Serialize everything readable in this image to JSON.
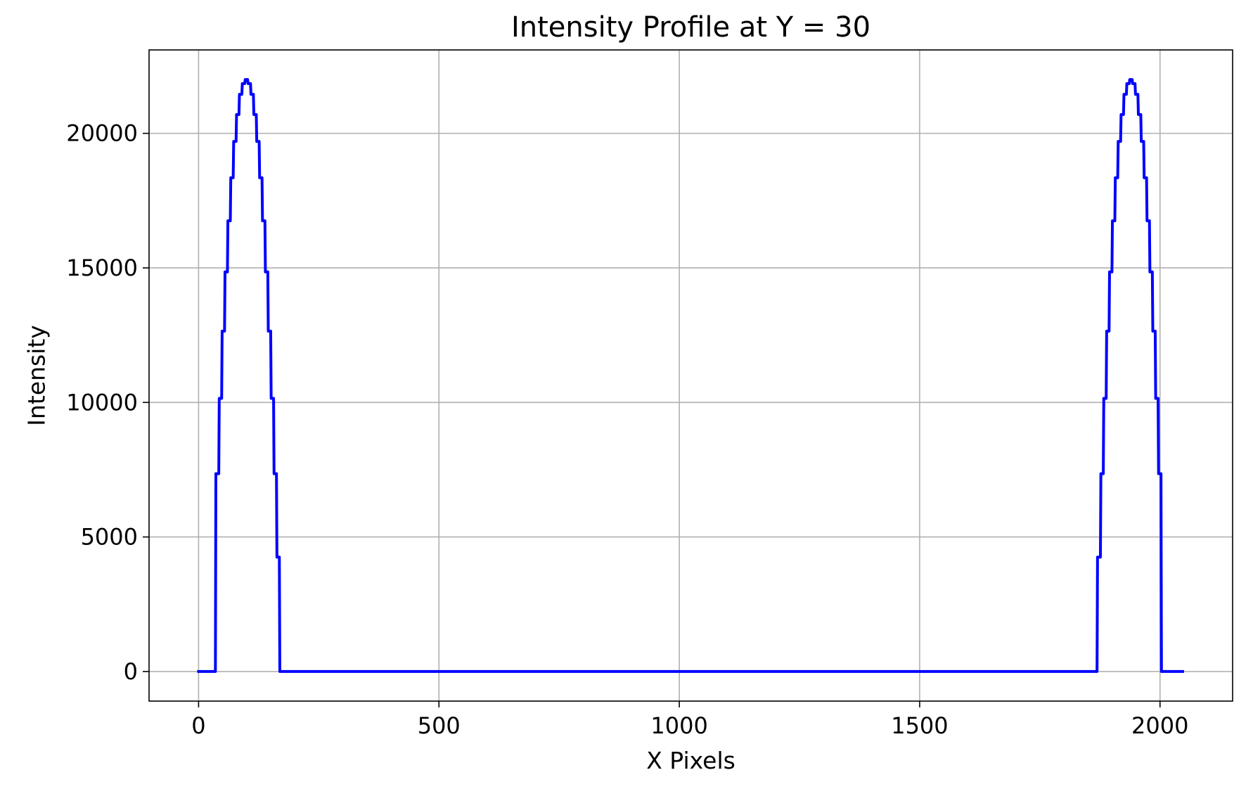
{
  "chart_data": {
    "type": "line",
    "title": "Intensity Profile at Y = 30",
    "xlabel": "X Pixels",
    "ylabel": "Intensity",
    "xlim": [
      -103,
      2151
    ],
    "ylim": [
      -1100,
      23100
    ],
    "xticks": [
      0,
      500,
      1000,
      1500,
      2000
    ],
    "yticks": [
      0,
      5000,
      10000,
      15000,
      20000
    ],
    "grid": true,
    "legend": "none",
    "series": [
      {
        "color": "#0000ff",
        "x": [
          0,
          35,
          36,
          42,
          43,
          48,
          49,
          54,
          55,
          60,
          61,
          66,
          67,
          72,
          73,
          78,
          79,
          84,
          85,
          90,
          91,
          96,
          97,
          102,
          103,
          108,
          109,
          114,
          115,
          120,
          121,
          126,
          127,
          132,
          133,
          138,
          139,
          144,
          145,
          150,
          151,
          156,
          157,
          162,
          163,
          168,
          169,
          1869,
          1870,
          1876,
          1877,
          1882,
          1883,
          1888,
          1889,
          1894,
          1895,
          1900,
          1901,
          1906,
          1907,
          1912,
          1913,
          1918,
          1919,
          1924,
          1925,
          1930,
          1931,
          1936,
          1937,
          1942,
          1943,
          1948,
          1949,
          1954,
          1955,
          1960,
          1961,
          1966,
          1967,
          1972,
          1973,
          1978,
          1979,
          1984,
          1985,
          1990,
          1991,
          1996,
          1997,
          2002,
          2003,
          2047
        ],
        "y": [
          0,
          0,
          7350,
          7350,
          10150,
          10150,
          12650,
          12650,
          14850,
          14850,
          16750,
          16750,
          18350,
          18350,
          19700,
          19700,
          20700,
          20700,
          21450,
          21450,
          21850,
          21850,
          22000,
          22000,
          21850,
          21850,
          21450,
          21450,
          20700,
          20700,
          19700,
          19700,
          18350,
          18350,
          16750,
          16750,
          14850,
          14850,
          12650,
          12650,
          10150,
          10150,
          7350,
          7350,
          4250,
          4250,
          0,
          0,
          4250,
          4250,
          7350,
          7350,
          10150,
          10150,
          12650,
          12650,
          14850,
          14850,
          16750,
          16750,
          18350,
          18350,
          19700,
          19700,
          20700,
          20700,
          21450,
          21450,
          21850,
          21850,
          22000,
          22000,
          21850,
          21850,
          21450,
          21450,
          20700,
          20700,
          19700,
          19700,
          18350,
          18350,
          16750,
          16750,
          14850,
          14850,
          12650,
          12650,
          10150,
          10150,
          7350,
          7350,
          0,
          0
        ]
      }
    ]
  },
  "colors": {
    "line": "#0000ff",
    "grid": "#b0b0b0",
    "axes": "#000000"
  }
}
